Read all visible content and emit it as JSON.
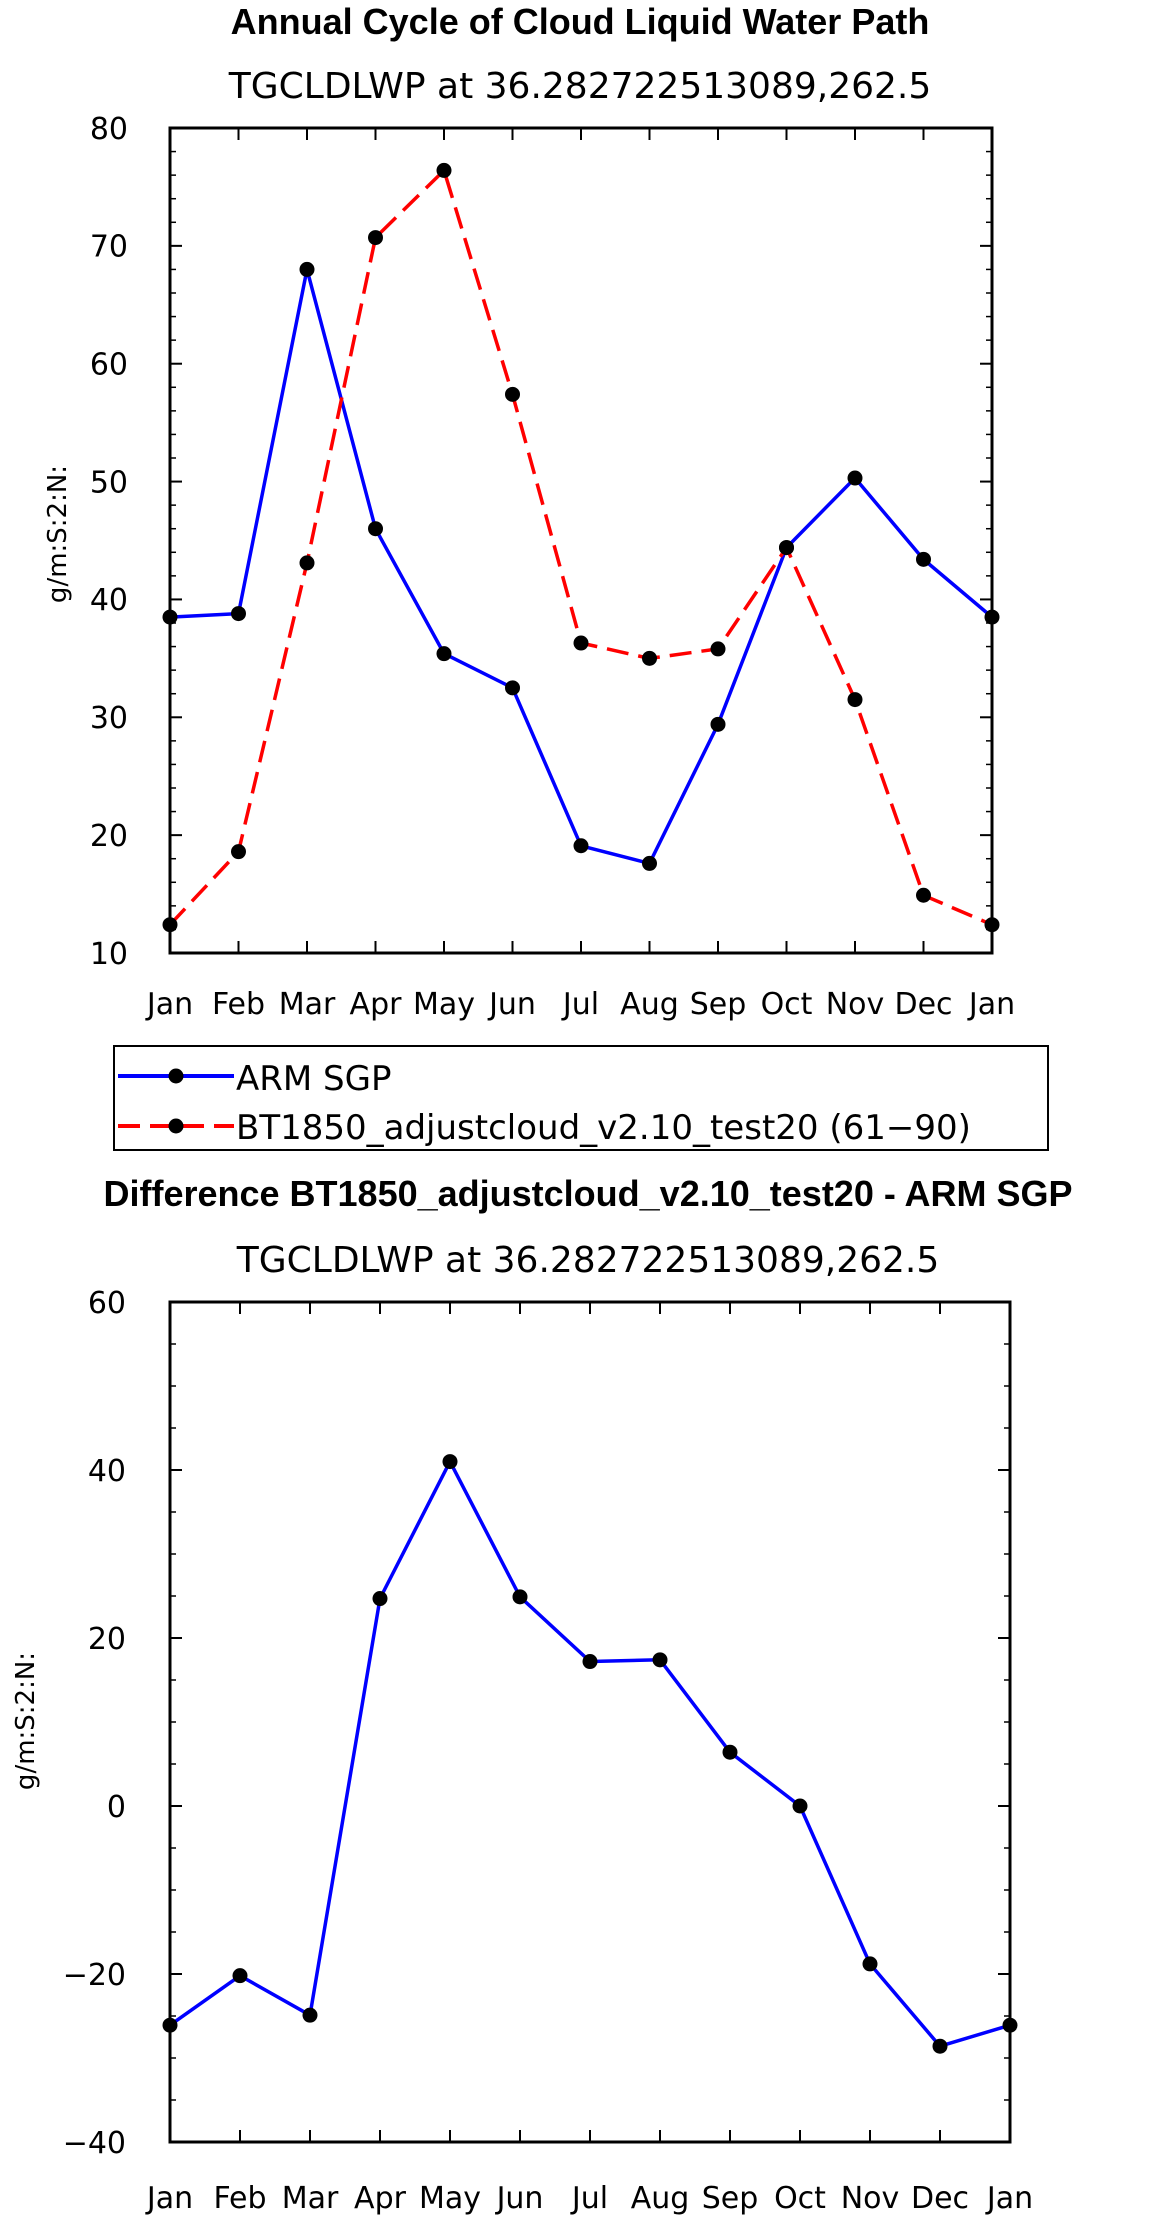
{
  "chart_data": [
    {
      "type": "line",
      "title": "Annual Cycle of Cloud Liquid Water Path",
      "subtitle": "TGCLDLWP at 36.282722513089,262.5",
      "xlabel": "",
      "ylabel": "g/m:S:2:N:",
      "categories": [
        "Jan",
        "Feb",
        "Mar",
        "Apr",
        "May",
        "Jun",
        "Jul",
        "Aug",
        "Sep",
        "Oct",
        "Nov",
        "Dec",
        "Jan"
      ],
      "ylim": [
        10,
        80
      ],
      "yticks": [
        10,
        20,
        30,
        40,
        50,
        60,
        70,
        80
      ],
      "series": [
        {
          "name": "ARM SGP",
          "color": "#0000ff",
          "dash": "solid",
          "values": [
            38.5,
            38.8,
            68.0,
            46.0,
            35.4,
            32.5,
            19.1,
            17.6,
            29.4,
            44.4,
            50.3,
            43.4,
            38.5
          ]
        },
        {
          "name": "BT1850_adjustcloud_v2.10_test20 (61−90)",
          "color": "#ff0000",
          "dash": "dashed",
          "values": [
            12.4,
            18.6,
            43.1,
            70.7,
            76.4,
            57.4,
            36.3,
            35.0,
            35.8,
            44.4,
            31.5,
            14.9,
            12.4
          ]
        }
      ],
      "legend": "below"
    },
    {
      "type": "line",
      "title": "Difference BT1850_adjustcloud_v2.10_test20 - ARM SGP",
      "subtitle": "TGCLDLWP at 36.282722513089,262.5",
      "xlabel": "",
      "ylabel": "g/m:S:2:N:",
      "categories": [
        "Jan",
        "Feb",
        "Mar",
        "Apr",
        "May",
        "Jun",
        "Jul",
        "Aug",
        "Sep",
        "Oct",
        "Nov",
        "Dec",
        "Jan"
      ],
      "ylim": [
        -40,
        60
      ],
      "yticks": [
        -40,
        -20,
        0,
        20,
        40,
        60
      ],
      "series": [
        {
          "name": "Difference",
          "color": "#0000ff",
          "dash": "solid",
          "values": [
            -26.1,
            -20.2,
            -24.9,
            24.7,
            41.0,
            24.9,
            17.2,
            17.4,
            6.4,
            0.0,
            -18.8,
            -28.6,
            -26.1
          ]
        }
      ]
    }
  ]
}
